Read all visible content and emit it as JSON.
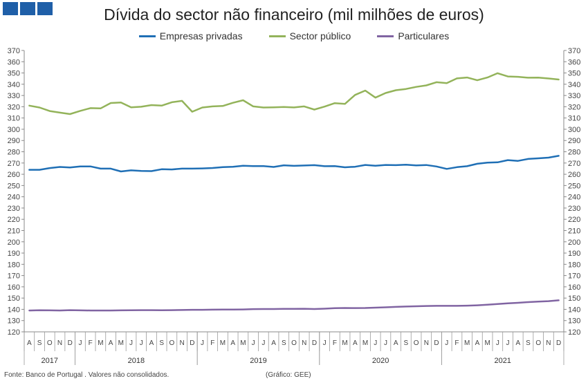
{
  "title": "Dívida do sector não financeiro (mil milhões de euros)",
  "source_note": "Fonte: Banco de Portugal . Valores não consolidados.",
  "credit_note": "(Gráfico: GEE)",
  "chart_data": {
    "type": "line",
    "title": "Dívida do sector não financeiro (mil milhões de euros)",
    "ylim": [
      120,
      370
    ],
    "ytick_step": 10,
    "grid": false,
    "legend_position": "top",
    "x": [
      "A",
      "S",
      "O",
      "N",
      "D",
      "J",
      "F",
      "M",
      "A",
      "M",
      "J",
      "J",
      "A",
      "S",
      "O",
      "N",
      "D",
      "J",
      "F",
      "M",
      "A",
      "M",
      "J",
      "J",
      "A",
      "S",
      "O",
      "N",
      "D",
      "J",
      "F",
      "M",
      "A",
      "M",
      "J",
      "J",
      "A",
      "S",
      "O",
      "N",
      "D",
      "J",
      "F",
      "M",
      "A",
      "M",
      "J",
      "J",
      "A",
      "S",
      "O",
      "N",
      "D"
    ],
    "years": [
      {
        "label": "2017",
        "start": 0,
        "end": 4
      },
      {
        "label": "2018",
        "start": 5,
        "end": 16
      },
      {
        "label": "2019",
        "start": 17,
        "end": 28
      },
      {
        "label": "2020",
        "start": 29,
        "end": 40
      },
      {
        "label": "2021",
        "start": 41,
        "end": 52
      }
    ],
    "series": [
      {
        "name": "Empresas privadas",
        "color": "#1f6fb5",
        "values": [
          264,
          264,
          265.5,
          266.5,
          266,
          267,
          267,
          265,
          265,
          262.5,
          263.5,
          263,
          262.8,
          264.5,
          264.3,
          265,
          265,
          265.2,
          265.6,
          266.3,
          266.6,
          267.6,
          267.3,
          267.3,
          266.5,
          268,
          267.5,
          267.8,
          268.1,
          267.2,
          267.3,
          266.2,
          266.7,
          268.3,
          267.6,
          268.3,
          268.1,
          268.5,
          267.9,
          268.2,
          266.9,
          264.8,
          266.3,
          267.2,
          269.3,
          270.3,
          270.6,
          272.6,
          271.9,
          273.6,
          274.2,
          274.8,
          276.4
        ]
      },
      {
        "name": "Sector público",
        "color": "#93b35a",
        "values": [
          321,
          319.3,
          316.2,
          314.8,
          313.5,
          316.3,
          318.8,
          318.5,
          323.3,
          323.8,
          319.5,
          320,
          321.5,
          321,
          324,
          325.2,
          315.6,
          319.3,
          320.3,
          320.7,
          323.5,
          325.8,
          320.3,
          319.3,
          319.5,
          319.8,
          319.4,
          320.3,
          317.5,
          320.1,
          323.2,
          322.5,
          330.5,
          334.4,
          328.1,
          332.2,
          334.7,
          335.8,
          337.6,
          339,
          341.8,
          341,
          345.2,
          346,
          343.5,
          346,
          349.8,
          346.9,
          346.6,
          345.8,
          345.9,
          345.1,
          344.2
        ]
      },
      {
        "name": "Particulares",
        "color": "#8064a2",
        "values": [
          139,
          139.2,
          139.1,
          139,
          139.3,
          139.1,
          139,
          139,
          139,
          139.1,
          139.2,
          139.3,
          139.3,
          139.2,
          139.3,
          139.4,
          139.6,
          139.6,
          139.7,
          139.8,
          139.8,
          139.9,
          140.2,
          140.3,
          140.3,
          140.4,
          140.4,
          140.5,
          140.3,
          140.6,
          141,
          141.2,
          141.1,
          141.2,
          141.5,
          141.8,
          142.2,
          142.5,
          142.7,
          143,
          143.1,
          143.1,
          143.1,
          143.3,
          143.6,
          144.1,
          144.7,
          145.3,
          145.8,
          146.4,
          146.9,
          147.3,
          148
        ]
      }
    ]
  }
}
